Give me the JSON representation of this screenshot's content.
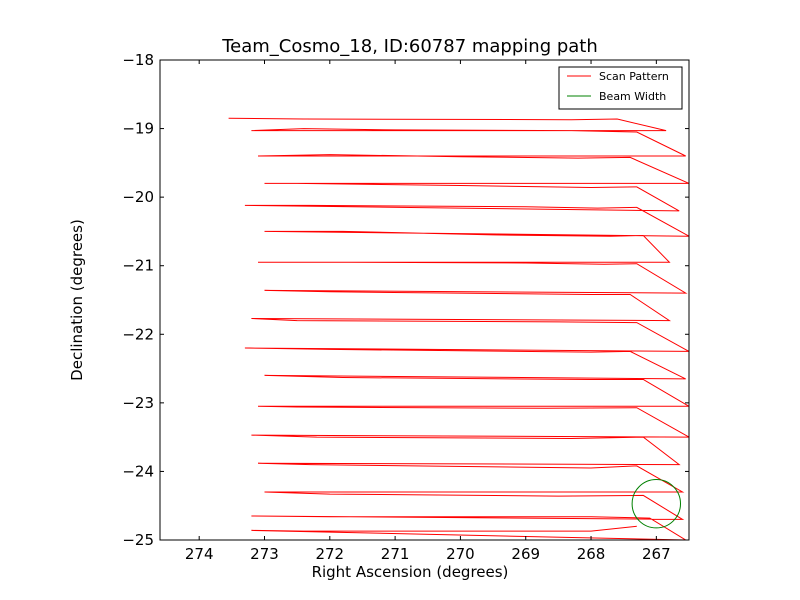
{
  "chart_data": {
    "type": "line",
    "title": "Team_Cosmo_18, ID:60787 mapping path",
    "xlabel": "Right Ascension (degrees)",
    "ylabel": "Declination (degrees)",
    "xlim": [
      274.6,
      266.5
    ],
    "ylim": [
      -25,
      -18
    ],
    "x_inverted": true,
    "xticks": [
      274,
      273,
      272,
      271,
      270,
      269,
      268,
      267
    ],
    "xtick_labels": [
      "274",
      "273",
      "272",
      "271",
      "270",
      "269",
      "268",
      "267"
    ],
    "yticks": [
      -25,
      -24,
      -23,
      -22,
      -21,
      -20,
      -19,
      -18
    ],
    "ytick_labels": [
      "−25",
      "−24",
      "−23",
      "−22",
      "−21",
      "−20",
      "−19",
      "−18"
    ],
    "grid": false,
    "legend_position": "top-right",
    "series": [
      {
        "name": "Scan Pattern",
        "color": "#ff0000",
        "x": [
          273.55,
          272.4,
          268.3,
          267.6,
          266.85,
          273.2,
          272.4,
          271.0,
          268.3,
          267.3,
          266.55,
          273.1,
          272.0,
          270.0,
          268.2,
          267.4,
          266.5,
          273.0,
          272.5,
          270.0,
          268.0,
          267.3,
          266.65,
          273.3,
          272.3,
          269.0,
          267.9,
          267.3,
          266.5,
          273.0,
          271.8,
          269.5,
          267.7,
          267.2,
          266.8,
          273.1,
          271.7,
          269.0,
          267.8,
          267.3,
          266.55,
          273.0,
          272.0,
          268.0,
          267.4,
          266.8,
          273.2,
          272.5,
          268.5,
          267.3,
          266.5,
          273.3,
          272.0,
          268.0,
          267.4,
          266.55,
          273.0,
          271.8,
          268.0,
          267.2,
          266.5,
          273.1,
          272.5,
          268.7,
          267.3,
          266.5,
          273.2,
          272.2,
          268.3,
          267.2,
          266.65,
          273.1,
          272.3,
          268.0,
          267.3,
          266.6,
          273.0,
          272.0,
          268.5,
          267.2,
          266.6,
          273.2,
          272.0,
          268.0,
          267.1,
          266.55,
          273.2,
          272.4,
          268.0,
          267.3
        ],
        "y": [
          -18.85,
          -18.86,
          -18.87,
          -18.86,
          -19.03,
          -19.03,
          -19.0,
          -19.02,
          -19.03,
          -19.05,
          -19.4,
          -19.4,
          -19.38,
          -19.41,
          -19.43,
          -19.42,
          -19.8,
          -19.8,
          -19.8,
          -19.83,
          -19.86,
          -19.85,
          -20.2,
          -20.12,
          -20.12,
          -20.14,
          -20.16,
          -20.15,
          -20.57,
          -20.5,
          -20.5,
          -20.55,
          -20.57,
          -20.56,
          -20.95,
          -20.95,
          -20.95,
          -20.96,
          -20.98,
          -20.97,
          -21.4,
          -21.36,
          -21.38,
          -21.42,
          -21.42,
          -21.8,
          -21.77,
          -21.8,
          -21.82,
          -21.83,
          -22.25,
          -22.2,
          -22.22,
          -22.26,
          -22.25,
          -22.65,
          -22.6,
          -22.63,
          -22.66,
          -22.66,
          -23.05,
          -23.05,
          -23.06,
          -23.08,
          -23.07,
          -23.5,
          -23.47,
          -23.5,
          -23.52,
          -23.5,
          -23.9,
          -23.88,
          -23.9,
          -23.95,
          -23.92,
          -24.3,
          -24.3,
          -24.33,
          -24.36,
          -24.35,
          -24.7,
          -24.65,
          -24.66,
          -24.66,
          -24.68,
          -25.0,
          -24.86,
          -24.87,
          -24.87,
          -24.8
        ],
        "row_count": 16,
        "row_dec_start": -18.85,
        "row_dec_step": -0.42,
        "rows_ra_start": [
          273.55,
          273.9,
          273.7,
          273.65,
          273.75,
          273.7,
          273.6,
          273.5,
          273.7,
          273.75,
          273.8,
          273.75,
          273.7,
          273.65,
          273.85,
          273.6
        ],
        "rows_ra_end": [
          266.85,
          266.55,
          266.65,
          266.5,
          266.7,
          266.6,
          266.8,
          266.65,
          266.55,
          266.5,
          266.6,
          266.5,
          266.65,
          266.55,
          266.6,
          267.3
        ]
      },
      {
        "name": "Beam Width",
        "color": "#008000",
        "center": [
          267.0,
          -24.47
        ],
        "radius": 0.37
      }
    ]
  }
}
